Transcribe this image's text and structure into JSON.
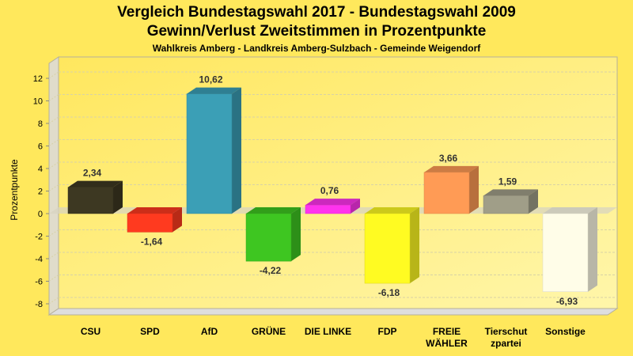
{
  "chart_data": {
    "type": "bar",
    "title": "Vergleich Bundestagswahl 2017 - Bundestagswahl 2009",
    "subtitle": "Gewinn/Verlust Zweitstimmen in Prozentpunkte",
    "subsubtitle": "Wahlkreis Amberg - Landkreis Amberg-Sulzbach - Gemeinde Weigendorf",
    "xlabel": "",
    "ylabel": "Prozentpunkte",
    "ylim": [
      -9.5,
      13
    ],
    "yticks": [
      12,
      10,
      8,
      6,
      4,
      2,
      0,
      -2,
      -4,
      -6,
      -8
    ],
    "grid": true,
    "categories": [
      [
        "CSU"
      ],
      [
        "SPD"
      ],
      [
        "AfD"
      ],
      [
        "GRÜNE"
      ],
      [
        "DIE LINKE"
      ],
      [
        "FDP"
      ],
      [
        "FREIE",
        "WÄHLER"
      ],
      [
        "Tierschut",
        "zpartei"
      ],
      [
        "Sonstige"
      ]
    ],
    "values": [
      2.34,
      -1.64,
      10.62,
      -4.22,
      0.76,
      -6.18,
      3.66,
      1.59,
      -6.93
    ],
    "value_labels": [
      "2,34",
      "-1,64",
      "10,62",
      "-4,22",
      "0,76",
      "-6,18",
      "3,66",
      "1,59",
      "-6,93"
    ],
    "colors": [
      "#3d3822",
      "#ff3a1f",
      "#3b9fb6",
      "#3ec621",
      "#ff33ee",
      "#fffb22",
      "#ff9b55",
      "#a09e88",
      "#fffde8"
    ]
  },
  "colors": {
    "background": "#ffe85c",
    "plot_top": "#ffe96a",
    "plot_bottom": "#fff5a8",
    "wall": "#dddddd",
    "grid": "#d8d2a6"
  }
}
